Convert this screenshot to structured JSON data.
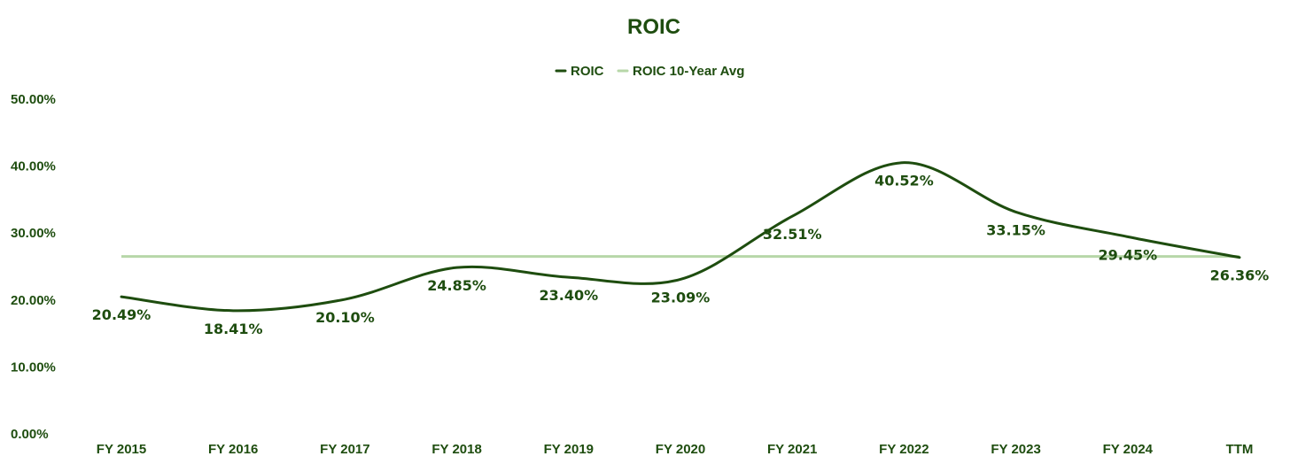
{
  "chart_data": {
    "type": "line",
    "title": "ROIC",
    "categories": [
      "FY 2015",
      "FY 2016",
      "FY 2017",
      "FY 2018",
      "FY 2019",
      "FY 2020",
      "FY 2021",
      "FY 2022",
      "FY 2023",
      "FY 2024",
      "TTM"
    ],
    "series": [
      {
        "name": "ROIC",
        "color": "#1e4d0f",
        "values": [
          20.49,
          18.41,
          20.1,
          24.85,
          23.4,
          23.09,
          32.51,
          40.52,
          33.15,
          29.45,
          26.36
        ],
        "labels": [
          "20.49%",
          "18.41%",
          "20.10%",
          "24.85%",
          "23.40%",
          "23.09%",
          "32.51%",
          "40.52%",
          "33.15%",
          "29.45%",
          "26.36%"
        ]
      },
      {
        "name": "ROIC 10-Year Avg",
        "color": "#b7d7a8",
        "values": [
          26.5,
          26.5,
          26.5,
          26.5,
          26.5,
          26.5,
          26.5,
          26.5,
          26.5,
          26.5,
          26.5
        ]
      }
    ],
    "ylim": [
      0,
      50
    ],
    "yticks": [
      "0.00%",
      "10.00%",
      "20.00%",
      "30.00%",
      "40.00%",
      "50.00%"
    ],
    "xlabel": "",
    "ylabel": "",
    "legend": "top-center",
    "grid": false,
    "text_color": "#1e4d0f"
  }
}
